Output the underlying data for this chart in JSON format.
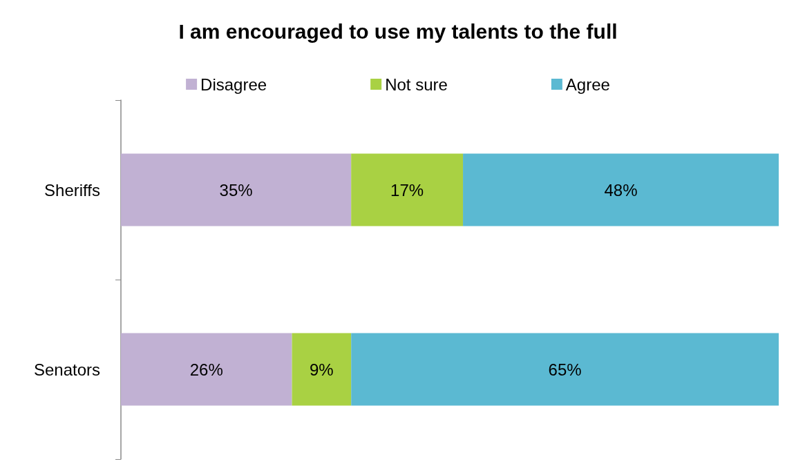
{
  "chart_data": {
    "type": "bar",
    "orientation": "horizontal",
    "stacked": true,
    "title": "I am encouraged to use my talents to the full",
    "categories": [
      "Sheriffs",
      "Senators"
    ],
    "legend": "top",
    "series": [
      {
        "name": "Disagree",
        "color": "#c1b1d3",
        "values": [
          35,
          26
        ],
        "value_labels": [
          "35%",
          "26%"
        ]
      },
      {
        "name": "Not sure",
        "color": "#a9d143",
        "values": [
          17,
          9
        ],
        "value_labels": [
          "17%",
          "9%"
        ]
      },
      {
        "name": "Agree",
        "color": "#5bb9d2",
        "values": [
          48,
          65
        ],
        "value_labels": [
          "48%",
          "65%"
        ]
      }
    ]
  }
}
